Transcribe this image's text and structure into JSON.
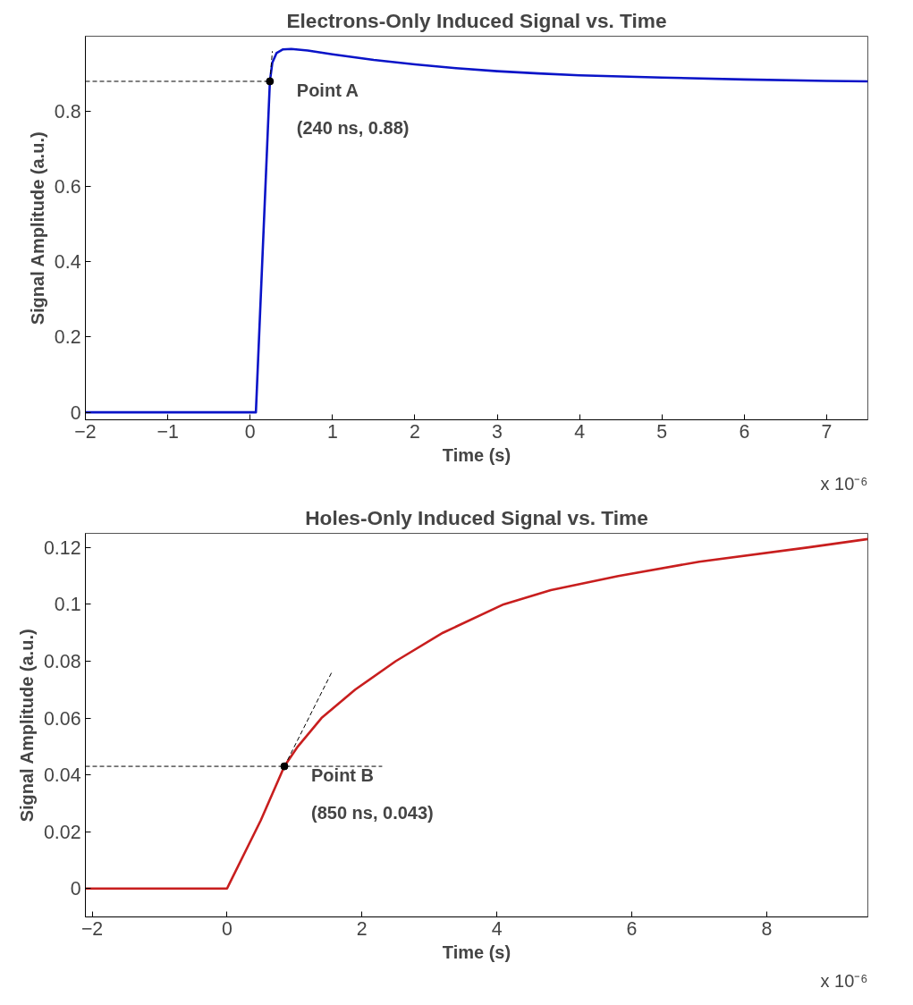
{
  "chart_data": [
    {
      "type": "line",
      "title": "Electrons-Only Induced Signal vs. Time",
      "xlabel": "Time (s)",
      "ylabel": "Signal Amplitude (a.u.)",
      "xlim": [
        -2,
        7.5
      ],
      "ylim": [
        -0.02,
        1.0
      ],
      "xticks": [
        -2,
        -1,
        0,
        1,
        2,
        3,
        4,
        5,
        6,
        7
      ],
      "yticks": [
        0,
        0.2,
        0.4,
        0.6,
        0.8
      ],
      "grid": false,
      "series": [
        {
          "color": "#0a14c8",
          "x": [
            -2,
            0.07,
            0.24,
            0.27,
            0.32,
            0.4,
            0.5,
            0.7,
            1.0,
            1.5,
            2.0,
            2.5,
            3.0,
            3.5,
            4.0,
            5.0,
            6.0,
            7.0,
            7.5
          ],
          "values": [
            0,
            0,
            0.88,
            0.93,
            0.955,
            0.965,
            0.966,
            0.962,
            0.952,
            0.937,
            0.925,
            0.915,
            0.907,
            0.901,
            0.896,
            0.89,
            0.885,
            0.881,
            0.88
          ]
        },
        {
          "type": "line",
          "line_style": "dashed",
          "color": "#000000",
          "x": [
            -2,
            0.24
          ],
          "values": [
            0.88,
            0.88
          ]
        },
        {
          "type": "line",
          "line_style": "dashed",
          "color": "#000000",
          "x": [
            0.24,
            0.27
          ],
          "values": [
            0.88,
            0.96
          ]
        },
        {
          "type": "scatter",
          "marker": "circle",
          "color": "#000000",
          "x": [
            0.24
          ],
          "values": [
            0.88
          ]
        }
      ],
      "annotations": [
        "Point A",
        "(240 ns, 0.88)",
        "x 10⁻⁶"
      ]
    },
    {
      "type": "line",
      "title": "Holes-Only Induced Signal vs. Time",
      "xlabel": "Time (s)",
      "ylabel": "Signal Amplitude (a.u.)",
      "xlim": [
        -2.1,
        9.5
      ],
      "ylim": [
        -0.01,
        0.125
      ],
      "xticks": [
        -2,
        0,
        2,
        4,
        6,
        8
      ],
      "yticks": [
        0,
        0.02,
        0.04,
        0.06,
        0.08,
        0.1,
        0.12
      ],
      "grid": false,
      "series": [
        {
          "color": "#c81e1e",
          "x": [
            -2.1,
            -1,
            0,
            0.5,
            0.85,
            1.05,
            1.4,
            1.9,
            2.5,
            3.2,
            4.1,
            4.8,
            5.8,
            7.0,
            8.6,
            9.5
          ],
          "values": [
            0,
            0,
            0,
            0.024,
            0.043,
            0.05,
            0.06,
            0.07,
            0.08,
            0.09,
            0.1,
            0.105,
            0.11,
            0.115,
            0.12,
            0.123
          ]
        },
        {
          "type": "line",
          "line_style": "dashed",
          "color": "#000000",
          "x": [
            -2.1,
            2.3
          ],
          "values": [
            0.043,
            0.043
          ]
        },
        {
          "type": "line",
          "line_style": "dashed",
          "color": "#000000",
          "x": [
            0.85,
            1.55
          ],
          "values": [
            0.043,
            0.076
          ]
        },
        {
          "type": "scatter",
          "marker": "circle",
          "color": "#000000",
          "x": [
            0.85
          ],
          "values": [
            0.043
          ]
        }
      ],
      "annotations": [
        "Point B",
        "(850 ns, 0.043)",
        "x 10⁻⁶"
      ]
    }
  ]
}
